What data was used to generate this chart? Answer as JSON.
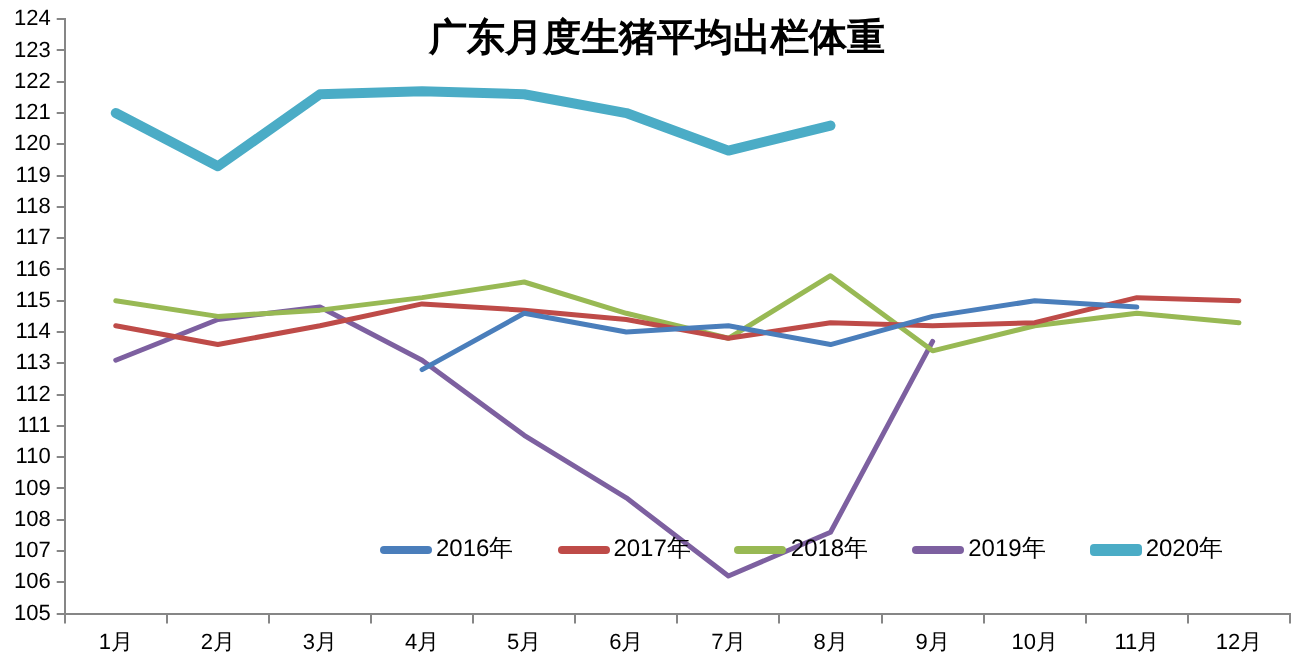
{
  "chart_data": {
    "type": "line",
    "title": "广东月度生猪平均出栏体重",
    "categories": [
      "1月",
      "2月",
      "3月",
      "4月",
      "5月",
      "6月",
      "7月",
      "8月",
      "9月",
      "10月",
      "11月",
      "12月"
    ],
    "series": [
      {
        "name": "2016年",
        "color": "#4a7ebb",
        "values": [
          null,
          null,
          null,
          112.8,
          114.6,
          114.0,
          114.2,
          113.6,
          114.5,
          115.0,
          114.8,
          null
        ]
      },
      {
        "name": "2017年",
        "color": "#be4b48",
        "values": [
          114.2,
          113.6,
          114.2,
          114.9,
          114.7,
          114.4,
          113.8,
          114.3,
          114.2,
          114.3,
          115.1,
          115.0
        ]
      },
      {
        "name": "2018年",
        "color": "#98b954",
        "values": [
          115.0,
          114.5,
          114.7,
          115.1,
          115.6,
          114.6,
          113.8,
          115.8,
          113.4,
          114.2,
          114.6,
          114.3
        ]
      },
      {
        "name": "2019年",
        "color": "#7d60a0",
        "values": [
          113.1,
          114.4,
          114.8,
          113.1,
          110.7,
          108.7,
          106.2,
          107.6,
          113.7,
          null,
          null,
          null
        ]
      },
      {
        "name": "2020年",
        "color": "#4bacc6",
        "values": [
          121.0,
          119.3,
          121.6,
          121.7,
          121.6,
          121.0,
          119.8,
          120.6,
          null,
          null,
          null,
          null
        ]
      }
    ],
    "ylim": [
      105,
      124
    ],
    "yticks": [
      105,
      106,
      107,
      108,
      109,
      110,
      111,
      112,
      113,
      114,
      115,
      116,
      117,
      118,
      119,
      120,
      121,
      122,
      123,
      124
    ],
    "grid": false,
    "legend": "bottom",
    "marker": "none",
    "line_style": "solid"
  }
}
